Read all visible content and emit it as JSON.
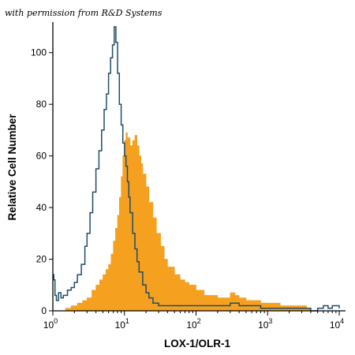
{
  "credit": "with permission from R&D Systems",
  "chart_data": {
    "type": "area",
    "title": "",
    "xlabel": "LOX-1/OLR-1",
    "ylabel": "Relative Cell Number",
    "x_scale": "log",
    "xlim": [
      1,
      10000
    ],
    "ylim": [
      0,
      110
    ],
    "x_ticks": [
      {
        "value": 1,
        "base": "10",
        "exp": "0"
      },
      {
        "value": 10,
        "base": "10",
        "exp": "1"
      },
      {
        "value": 100,
        "base": "10",
        "exp": "2"
      },
      {
        "value": 1000,
        "base": "10",
        "exp": "3"
      },
      {
        "value": 10000,
        "base": "10",
        "exp": "4"
      }
    ],
    "y_ticks": [
      0,
      20,
      40,
      60,
      80,
      100
    ],
    "grid": false,
    "legend": "none",
    "series": [
      {
        "style": "filled",
        "color": "#f5a01e",
        "points": [
          [
            1.5,
            1
          ],
          [
            1.8,
            2
          ],
          [
            2.2,
            3
          ],
          [
            2.6,
            4
          ],
          [
            3.0,
            5
          ],
          [
            3.5,
            8
          ],
          [
            4.0,
            10
          ],
          [
            4.5,
            12
          ],
          [
            5.0,
            14
          ],
          [
            5.5,
            16
          ],
          [
            6.0,
            18
          ],
          [
            6.5,
            22
          ],
          [
            7.0,
            27
          ],
          [
            7.5,
            32
          ],
          [
            8.0,
            37
          ],
          [
            8.5,
            44
          ],
          [
            9.0,
            52
          ],
          [
            9.5,
            60
          ],
          [
            10.0,
            66
          ],
          [
            10.5,
            69
          ],
          [
            11.0,
            67
          ],
          [
            12.0,
            64
          ],
          [
            13.0,
            66
          ],
          [
            14.0,
            68
          ],
          [
            15.0,
            64
          ],
          [
            16.0,
            60
          ],
          [
            17.0,
            57
          ],
          [
            18.0,
            53
          ],
          [
            20.0,
            48
          ],
          [
            22.0,
            42
          ],
          [
            25.0,
            36
          ],
          [
            28.0,
            30
          ],
          [
            32.0,
            25
          ],
          [
            36.0,
            20
          ],
          [
            40.0,
            17
          ],
          [
            50.0,
            14
          ],
          [
            60.0,
            12
          ],
          [
            70.0,
            11
          ],
          [
            80.0,
            10
          ],
          [
            100.0,
            8
          ],
          [
            130.0,
            6
          ],
          [
            160.0,
            6
          ],
          [
            200.0,
            5
          ],
          [
            250.0,
            5
          ],
          [
            300.0,
            7
          ],
          [
            350.0,
            6
          ],
          [
            400.0,
            5
          ],
          [
            500.0,
            4
          ],
          [
            600.0,
            4
          ],
          [
            800.0,
            3
          ],
          [
            1000.0,
            3
          ],
          [
            1500.0,
            2
          ],
          [
            2000.0,
            2
          ],
          [
            2500.0,
            2
          ],
          [
            3000.0,
            2
          ],
          [
            3500.0,
            1
          ],
          [
            4000.0,
            0
          ]
        ]
      },
      {
        "style": "line",
        "color": "#1f4e6a",
        "points": [
          [
            1.0,
            14
          ],
          [
            1.03,
            12
          ],
          [
            1.07,
            6
          ],
          [
            1.12,
            4
          ],
          [
            1.2,
            7
          ],
          [
            1.3,
            5
          ],
          [
            1.4,
            6
          ],
          [
            1.6,
            8
          ],
          [
            1.8,
            9
          ],
          [
            2.0,
            11
          ],
          [
            2.2,
            14
          ],
          [
            2.5,
            18
          ],
          [
            2.8,
            25
          ],
          [
            3.0,
            30
          ],
          [
            3.3,
            38
          ],
          [
            3.6,
            46
          ],
          [
            4.0,
            55
          ],
          [
            4.4,
            62
          ],
          [
            4.8,
            70
          ],
          [
            5.2,
            78
          ],
          [
            5.6,
            84
          ],
          [
            6.0,
            92
          ],
          [
            6.4,
            98
          ],
          [
            6.8,
            103
          ],
          [
            7.2,
            110
          ],
          [
            7.6,
            104
          ],
          [
            8.0,
            92
          ],
          [
            8.5,
            80
          ],
          [
            9.0,
            72
          ],
          [
            9.5,
            65
          ],
          [
            10.0,
            60
          ],
          [
            10.5,
            56
          ],
          [
            11.0,
            50
          ],
          [
            11.5,
            44
          ],
          [
            12.0,
            38
          ],
          [
            13.0,
            30
          ],
          [
            14.0,
            24
          ],
          [
            15.0,
            19
          ],
          [
            16.0,
            15
          ],
          [
            18.0,
            10
          ],
          [
            20.0,
            7
          ],
          [
            22.0,
            5
          ],
          [
            25.0,
            3
          ],
          [
            30.0,
            2
          ],
          [
            40.0,
            2
          ],
          [
            60.0,
            2
          ],
          [
            80.0,
            2
          ],
          [
            100.0,
            2
          ],
          [
            150.0,
            2
          ],
          [
            200.0,
            2
          ],
          [
            300.0,
            3
          ],
          [
            400.0,
            2
          ],
          [
            600.0,
            2
          ],
          [
            800.0,
            1
          ],
          [
            1000.0,
            1
          ],
          [
            1500.0,
            1
          ],
          [
            2000.0,
            1
          ],
          [
            3000.0,
            1
          ],
          [
            4000.0,
            0
          ],
          [
            5000.0,
            1
          ],
          [
            6000.0,
            2
          ],
          [
            7000.0,
            1
          ],
          [
            8000.0,
            2
          ],
          [
            9000.0,
            2
          ],
          [
            10000.0,
            1
          ]
        ]
      }
    ]
  }
}
